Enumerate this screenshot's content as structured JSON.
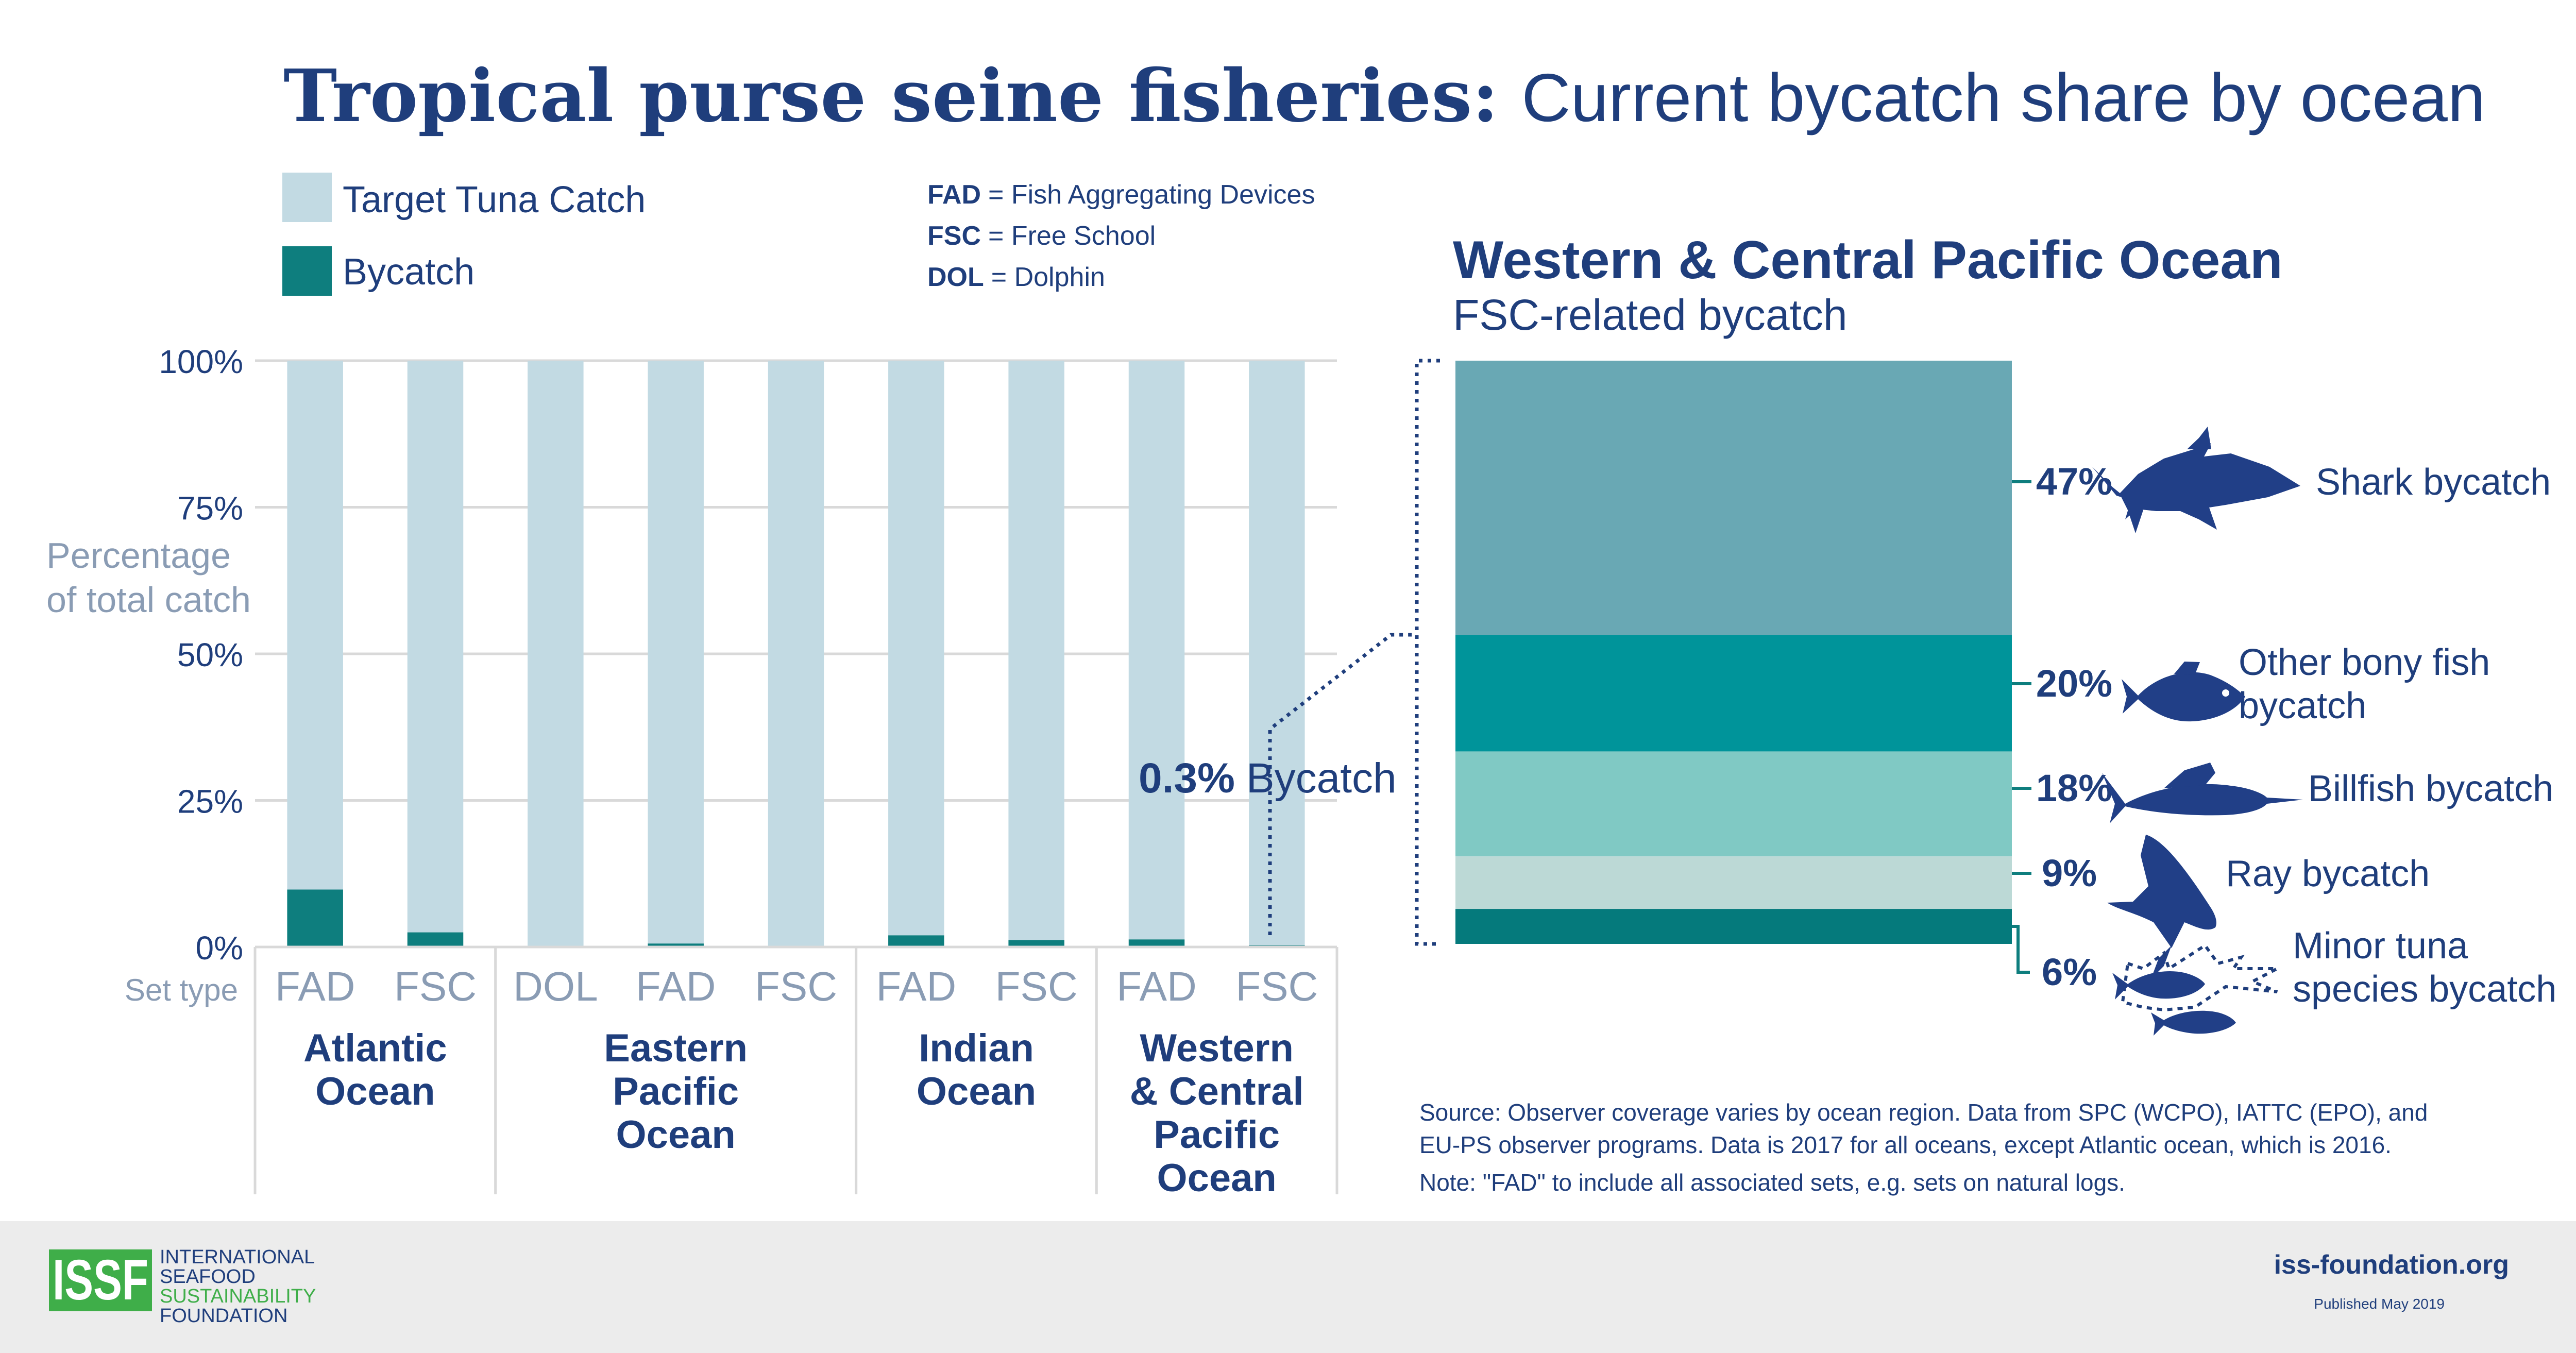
{
  "title": {
    "bold": "Tropical purse seine fisheries:",
    "light": "Current bycatch share by ocean"
  },
  "legend": {
    "items": [
      {
        "label": "Target Tuna Catch",
        "color": "#c2dae3"
      },
      {
        "label": "Bycatch",
        "color": "#0e7e7e"
      }
    ]
  },
  "abbreviations": [
    {
      "abbr": "FAD",
      "meaning": "= Fish Aggregating Devices"
    },
    {
      "abbr": "FSC",
      "meaning": "= Free School"
    },
    {
      "abbr": "DOL",
      "meaning": "= Dolphin"
    }
  ],
  "chart_data": [
    {
      "type": "bar",
      "stacked": true,
      "ylabel": [
        "Percentage",
        "of total catch"
      ],
      "ylim": [
        0,
        100
      ],
      "yticks": [
        0,
        25,
        50,
        75,
        100
      ],
      "ytick_labels": [
        "0%",
        "25%",
        "50%",
        "75%",
        "100%"
      ],
      "grid": true,
      "xaxis_prefix": "Set type",
      "categories": [
        "FAD",
        "FSC",
        "DOL",
        "FAD",
        "FSC",
        "FAD",
        "FSC",
        "FAD",
        "FSC"
      ],
      "groups": [
        {
          "name_lines": [
            "Atlantic",
            "Ocean"
          ],
          "indices": [
            0,
            1
          ]
        },
        {
          "name_lines": [
            "Eastern",
            "Pacific",
            "Ocean"
          ],
          "indices": [
            2,
            3,
            4
          ]
        },
        {
          "name_lines": [
            "Indian",
            "Ocean"
          ],
          "indices": [
            5,
            6
          ]
        },
        {
          "name_lines": [
            "Western",
            "& Central",
            "Pacific",
            "Ocean"
          ],
          "indices": [
            7,
            8
          ]
        }
      ],
      "series": [
        {
          "name": "Bycatch",
          "color": "#0e7e7e",
          "values": [
            9.8,
            2.5,
            0.1,
            0.6,
            0.1,
            2.0,
            1.2,
            1.3,
            0.3
          ]
        },
        {
          "name": "Target Tuna Catch",
          "color": "#c2dae3",
          "values": [
            90.2,
            97.5,
            99.9,
            99.4,
            99.9,
            98.0,
            98.8,
            98.7,
            99.7
          ]
        }
      ],
      "annotation": {
        "value": "0.3%",
        "text": "Bycatch"
      }
    },
    {
      "type": "bar",
      "stacked": true,
      "title": "Western & Central Pacific Ocean",
      "subtitle": "FSC-related bycatch",
      "segments": [
        {
          "label_lines": [
            "Shark bycatch"
          ],
          "value": 47,
          "label": "47%",
          "color": "#69a8b4",
          "icon": "shark-icon"
        },
        {
          "label_lines": [
            "Other bony fish",
            "bycatch"
          ],
          "value": 20,
          "label": "20%",
          "color": "#00949a",
          "icon": "fish-icon"
        },
        {
          "label_lines": [
            "Billfish bycatch"
          ],
          "value": 18,
          "label": "18%",
          "color": "#80c9c4",
          "icon": "billfish-icon"
        },
        {
          "label_lines": [
            "Ray bycatch"
          ],
          "value": 9,
          "label": "9%",
          "color": "#bcd9d6",
          "icon": "ray-icon"
        },
        {
          "label_lines": [
            "Minor tuna",
            "species bycatch"
          ],
          "value": 6,
          "label": "6%",
          "color": "#057a7c",
          "icon": "tuna-icon"
        }
      ]
    }
  ],
  "notes": [
    "Source: Observer coverage varies by ocean region. Data from SPC (WCPO), IATTC (EPO), and",
    "EU-PS observer programs. Data is 2017 for all oceans, except Atlantic ocean, which is 2016.",
    "Note: \"FAD\" to include all associated sets, e.g. sets on natural logs."
  ],
  "footer": {
    "logo_text": "ISSF",
    "org_lines": [
      "INTERNATIONAL",
      "SEAFOOD",
      "SUSTAINABILITY",
      "FOUNDATION"
    ],
    "website": "iss-foundation.org",
    "published": "Published May 2019"
  },
  "colors": {
    "navy": "#1f3e7c",
    "footer_bg": "#ececec",
    "logo_green": "#3fae49"
  }
}
